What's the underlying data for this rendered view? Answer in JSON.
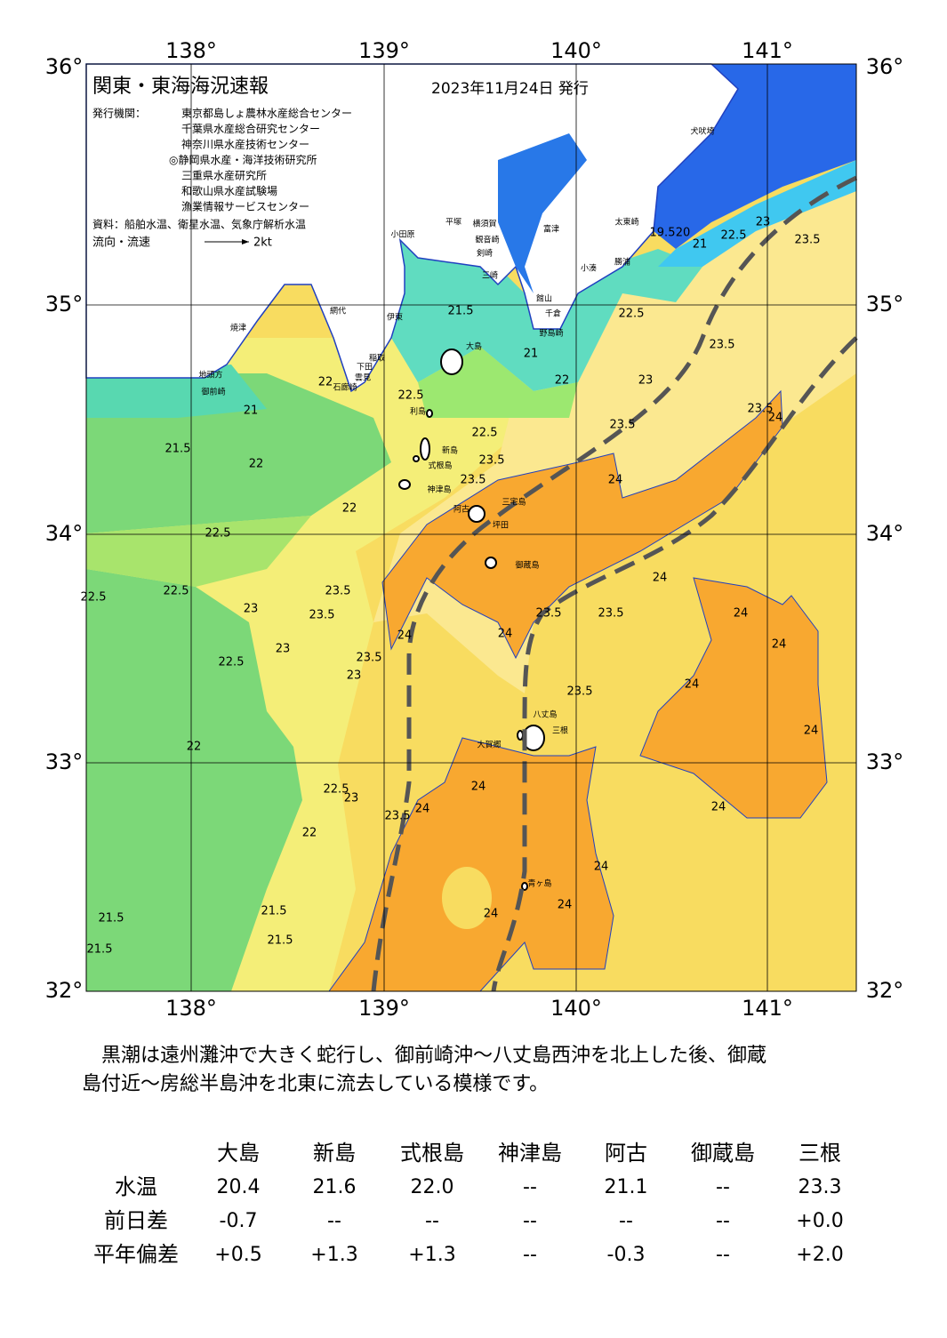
{
  "header": {
    "title": "関東・東海海況速報",
    "date": "2023年11月24日 発行"
  },
  "issuers": {
    "label": "発行機関：",
    "names": [
      "東京都島しょ農林水産総合センター",
      "千葉県水産総合研究センター",
      "神奈川県水産技術センター",
      "◎静岡県水産・海洋技術研究所",
      "三重県水産研究所",
      "和歌山県水産試験場",
      "漁業情報サービスセンター"
    ]
  },
  "source": "資料：船舶水温、衛星水温、気象庁解析水温",
  "flow_legend": {
    "label": "流向・流速",
    "speed": "2kt"
  },
  "axes": {
    "lon": [
      "138°",
      "139°",
      "140°",
      "141°"
    ],
    "lat": [
      "32°",
      "33°",
      "34°",
      "35°",
      "36°"
    ]
  },
  "places": [
    "犬吠埼",
    "太東崎",
    "勝浦",
    "小湊",
    "野島崎",
    "千倉",
    "館山",
    "富津",
    "横須賀",
    "観音崎",
    "剣崎",
    "三崎",
    "平塚",
    "小田原",
    "網代",
    "伊東",
    "稲取",
    "下田",
    "雲見",
    "石廊崎",
    "焼津",
    "地頭方",
    "御前崎",
    "大島",
    "利島",
    "新島",
    "式根島",
    "神津島",
    "阿古",
    "三宅島",
    "坪田",
    "御蔵島",
    "八丈島",
    "大賀郷",
    "三根",
    "青ヶ島"
  ],
  "contours": [
    "21",
    "21.5",
    "22",
    "22.5",
    "22.5",
    "22.5",
    "22.5",
    "23",
    "23.5",
    "23.5",
    "23",
    "23",
    "23.5",
    "22",
    "22.5",
    "23",
    "22",
    "21.5",
    "21.5",
    "21.5",
    "21.5",
    "23.5",
    "24",
    "24",
    "24",
    "24",
    "23.5",
    "23.5",
    "23.5",
    "24",
    "24",
    "24",
    "24",
    "24",
    "24",
    "24",
    "24",
    "24",
    "24",
    "23.5",
    "23.5",
    "23.5",
    "24",
    "23.5",
    "23",
    "22.5",
    "23",
    "22.5",
    "22",
    "21",
    "21.5",
    "22.5",
    "22.5",
    "23.5",
    "23.5",
    "22",
    "22",
    "19.5",
    "20",
    "21"
  ],
  "summary": [
    "　黒潮は遠州灘沖で大きく蛇行し、御前崎沖～八丈島西沖を北上した後、御蔵",
    "島付近～房総半島沖を北東に流去している模様です。"
  ],
  "table": {
    "columns": [
      "大島",
      "新島",
      "式根島",
      "神津島",
      "阿古",
      "御蔵島",
      "三根"
    ],
    "rows": [
      {
        "label": "水温",
        "values": [
          "20.4",
          "21.6",
          "22.0",
          "--",
          "21.1",
          "--",
          "23.3"
        ]
      },
      {
        "label": "前日差",
        "values": [
          "-0.7",
          "--",
          "--",
          "--",
          "--",
          "--",
          "+0.0"
        ]
      },
      {
        "label": "平年偏差",
        "values": [
          "+0.5",
          "+1.3",
          "+1.3",
          "--",
          "-0.3",
          "--",
          "+2.0"
        ]
      }
    ]
  }
}
